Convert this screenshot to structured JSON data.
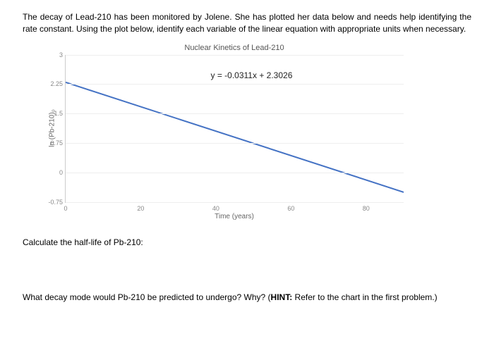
{
  "problem_text": "The decay of Lead-210 has been monitored by Jolene. She has plotted her data below and needs help identifying the rate constant. Using the plot below, identify each variable of the linear equation with appropriate units when necessary.",
  "chart": {
    "type": "line",
    "title": "Nuclear Kinetics of Lead-210",
    "equation": "y = -0.0311x + 2.3026",
    "ylabel": "ln (Pb-210)₀",
    "xlabel": "Time (years)",
    "ylim": [
      -0.75,
      3
    ],
    "xlim": [
      0,
      90
    ],
    "yticks": [
      -0.75,
      0,
      0.75,
      1.5,
      2.25,
      3
    ],
    "xticks": [
      0,
      20,
      40,
      60,
      80
    ],
    "line_color": "#4472c4",
    "line_width": 2,
    "grid_color": "#eeeeee",
    "background_color": "#ffffff",
    "slope": -0.0311,
    "intercept": 2.3026,
    "x_start": 0,
    "x_end": 90
  },
  "question1": "Calculate the half-life of Pb-210:",
  "question2_part1": "What decay mode would Pb-210 be predicted to undergo? Why? (",
  "question2_hint_label": "HINT:",
  "question2_part2": " Refer to the chart in the first problem.)"
}
